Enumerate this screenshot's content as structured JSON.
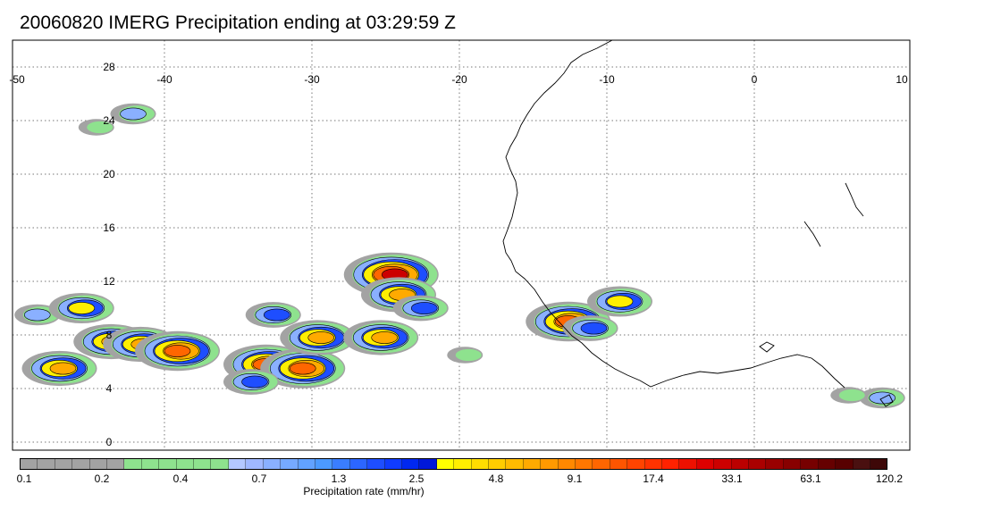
{
  "title": "20060820 IMERG Precipitation ending at 03:29:59 Z",
  "map": {
    "lon_range": [
      -50,
      10
    ],
    "lat_range": [
      -1,
      30
    ],
    "lon_ticks": [
      "-50",
      "-40",
      "-30",
      "-20",
      "-10",
      "0",
      "10"
    ],
    "lat_ticks": [
      "28",
      "24",
      "20",
      "16",
      "12",
      "8",
      "4",
      "0"
    ],
    "gridlines": true
  },
  "colorbar": {
    "title": "Precipitation rate (mm/hr)",
    "labels": [
      "0.1",
      "0.2",
      "0.4",
      "0.7",
      "1.3",
      "2.5",
      "4.8",
      "9.1",
      "17.4",
      "33.1",
      "63.1",
      "120.2"
    ],
    "colors": [
      "#a3a3a3",
      "#a3a3a3",
      "#a3a3a3",
      "#a3a3a3",
      "#a3a3a3",
      "#a3a3a3",
      "#8ee28e",
      "#8ee28e",
      "#8ee28e",
      "#8ee28e",
      "#8ee28e",
      "#8ee28e",
      "#b4c8ff",
      "#a0b8ff",
      "#8ab0ff",
      "#76aaff",
      "#62a2ff",
      "#4c9aff",
      "#3a7eff",
      "#2c66ff",
      "#1e4eff",
      "#103cff",
      "#0028f0",
      "#0018d8",
      "#ffff00",
      "#ffee00",
      "#ffdd00",
      "#ffcc00",
      "#ffbb00",
      "#ffaa00",
      "#ff9a00",
      "#ff8800",
      "#ff7700",
      "#ff6600",
      "#ff5500",
      "#ff4400",
      "#ff3300",
      "#ff2200",
      "#ee1100",
      "#dd0000",
      "#cc0000",
      "#bb0000",
      "#aa0000",
      "#990000",
      "#880000",
      "#770000",
      "#660000",
      "#580000",
      "#4a1010",
      "#3e0808"
    ]
  },
  "precip_cells": [
    {
      "lon": -48.5,
      "lat": 9.5,
      "rate": 1.3
    },
    {
      "lon": -47.0,
      "lat": 5.5,
      "rate": 9.1
    },
    {
      "lon": -45.5,
      "lat": 10.0,
      "rate": 4.8
    },
    {
      "lon": -43.5,
      "lat": 7.5,
      "rate": 9.1
    },
    {
      "lon": -41.5,
      "lat": 7.3,
      "rate": 9.1
    },
    {
      "lon": -39.0,
      "lat": 6.8,
      "rate": 17.4
    },
    {
      "lon": -42.0,
      "lat": 24.5,
      "rate": 1.3
    },
    {
      "lon": -44.5,
      "lat": 23.5,
      "rate": 0.7
    },
    {
      "lon": -33.0,
      "lat": 5.8,
      "rate": 17.4
    },
    {
      "lon": -30.5,
      "lat": 5.5,
      "rate": 17.4
    },
    {
      "lon": -29.5,
      "lat": 7.8,
      "rate": 9.1
    },
    {
      "lon": -32.5,
      "lat": 9.5,
      "rate": 2.5
    },
    {
      "lon": -34.0,
      "lat": 4.5,
      "rate": 2.5
    },
    {
      "lon": -25.2,
      "lat": 7.8,
      "rate": 9.1
    },
    {
      "lon": -24.5,
      "lat": 12.5,
      "rate": 33.1
    },
    {
      "lon": -24.0,
      "lat": 11.0,
      "rate": 9.1
    },
    {
      "lon": -22.5,
      "lat": 10.0,
      "rate": 2.5
    },
    {
      "lon": -19.5,
      "lat": 6.5,
      "rate": 0.7
    },
    {
      "lon": -12.5,
      "lat": 9.0,
      "rate": 17.4
    },
    {
      "lon": -11.0,
      "lat": 8.5,
      "rate": 2.5
    },
    {
      "lon": -9.0,
      "lat": 10.5,
      "rate": 4.8
    },
    {
      "lon": 8.8,
      "lat": 3.3,
      "rate": 1.3
    },
    {
      "lon": 6.5,
      "lat": 3.5,
      "rate": 0.4
    }
  ]
}
